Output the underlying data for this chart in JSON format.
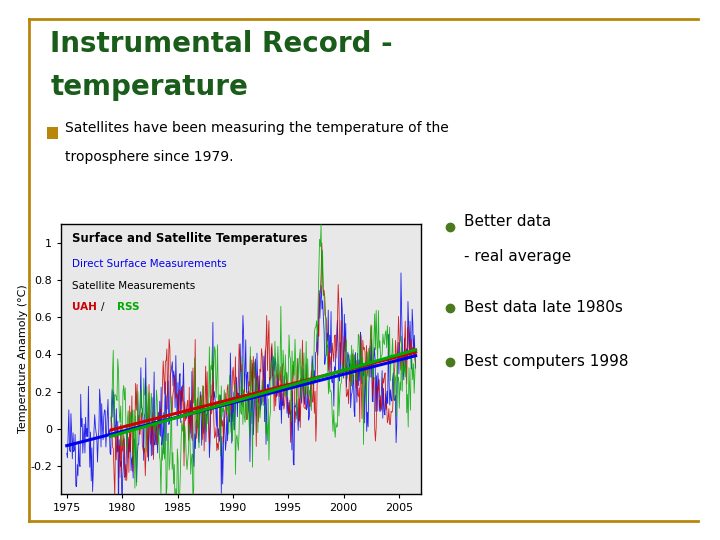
{
  "title_line1": "Instrumental Record -",
  "title_line2": "temperature",
  "title_color": "#1a5c1a",
  "bullet_sq_color": "#b8860b",
  "bullet_text1": "Satellites have been measuring the temperature of the",
  "bullet_text2": "troposphere since 1979.",
  "chart_title": "Surface and Satellite Temperatures",
  "chart_bg": "#e8e8e8",
  "legend_direct_surface": "Direct Surface Measurements",
  "legend_direct_color": "#0000ee",
  "legend_satellite": "Satellite Measurements",
  "legend_uah": "UAH",
  "legend_uah_color": "#cc0000",
  "legend_rss": "RSS",
  "legend_rss_color": "#00aa00",
  "ylabel": "Temperature Anamoly (°C)",
  "xlabel_years": [
    "1975",
    "1980",
    "1985",
    "1990",
    "1995",
    "2000",
    "2005"
  ],
  "ylim": [
    -0.35,
    1.1
  ],
  "xlim": [
    1974.5,
    2007
  ],
  "yticks": [
    -0.2,
    0,
    0.2,
    0.4,
    0.6,
    0.8,
    1
  ],
  "bullet_points_line1": [
    "Better data",
    "Best data late 1980s",
    "Best computers 1998"
  ],
  "bullet_points_line2": [
    "- real average",
    "",
    ""
  ],
  "bullet_pt_color": "#4a7a1e",
  "border_color": "#b8860b",
  "background_color": "#ffffff"
}
